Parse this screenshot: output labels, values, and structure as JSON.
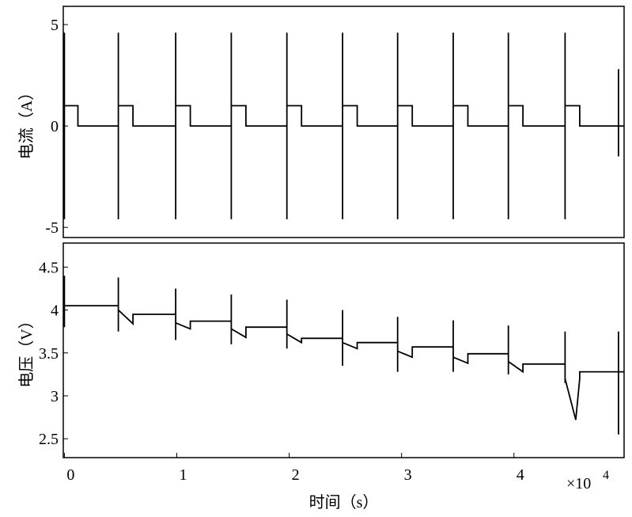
{
  "chart_data": [
    {
      "type": "line",
      "ylabel": "电流（A）",
      "x": [
        0,
        0,
        0,
        0,
        1200,
        1200,
        4800,
        4800,
        4800,
        4800,
        6100,
        6100,
        9900,
        9900,
        9900,
        9900,
        11200,
        11200,
        14850,
        14850,
        14850,
        14850,
        16150,
        16150,
        19800,
        19800,
        19800,
        19800,
        21100,
        21100,
        24750,
        24750,
        24750,
        24750,
        26050,
        26050,
        29650,
        29650,
        29650,
        29650,
        30950,
        30950,
        34600,
        34600,
        34600,
        34600,
        35900,
        35900,
        39500,
        39500,
        39500,
        39500,
        40800,
        40800,
        44550,
        44550,
        44550,
        44550,
        45850,
        45850,
        49300,
        49300,
        49300,
        49300,
        49800
      ],
      "series": [
        {
          "color": "#000000",
          "values": [
            0,
            -4.6,
            4.6,
            1,
            1,
            0,
            0,
            -4.6,
            4.6,
            1,
            1,
            0,
            0,
            -4.6,
            4.6,
            1,
            1,
            0,
            0,
            -4.6,
            4.6,
            1,
            1,
            0,
            0,
            -4.6,
            4.6,
            1,
            1,
            0,
            0,
            -4.6,
            4.6,
            1,
            1,
            0,
            0,
            -4.6,
            4.6,
            1,
            1,
            0,
            0,
            -4.6,
            4.6,
            1,
            1,
            0,
            0,
            -4.6,
            4.6,
            1,
            1,
            0,
            0,
            -4.6,
            4.6,
            1,
            1,
            0,
            0,
            -1.5,
            2.8,
            0,
            0
          ]
        }
      ],
      "xlim": [
        -100,
        49800
      ],
      "ylim": [
        -5.5,
        5.9
      ],
      "yticks": [
        -5,
        0,
        5
      ]
    },
    {
      "type": "line",
      "ylabel": "电压（V）",
      "xlabel": "时间（s）",
      "x_multiplier": "×10",
      "x_exponent": "4",
      "x": [
        0,
        0,
        0,
        4800,
        4800,
        4800,
        4800,
        6100,
        6100,
        9900,
        9900,
        9900,
        9900,
        11200,
        11200,
        14850,
        14850,
        14850,
        14850,
        16150,
        16150,
        19800,
        19800,
        19800,
        19800,
        21100,
        21100,
        24750,
        24750,
        24750,
        24750,
        26050,
        26050,
        29650,
        29650,
        29650,
        29650,
        30950,
        30950,
        34600,
        34600,
        34600,
        34600,
        35900,
        35900,
        39500,
        39500,
        39500,
        39500,
        40800,
        40800,
        44550,
        44550,
        44550,
        44550,
        45500,
        45850,
        45850,
        49300,
        49300,
        49300,
        49300,
        49800
      ],
      "series": [
        {
          "color": "#000000",
          "values": [
            3.8,
            4.4,
            4.05,
            4.05,
            4.38,
            3.75,
            4.0,
            3.84,
            3.95,
            3.95,
            4.25,
            3.65,
            3.85,
            3.78,
            3.87,
            3.87,
            4.18,
            3.6,
            3.78,
            3.68,
            3.8,
            3.8,
            4.12,
            3.55,
            3.72,
            3.62,
            3.67,
            3.67,
            4.0,
            3.35,
            3.62,
            3.55,
            3.62,
            3.62,
            3.92,
            3.28,
            3.52,
            3.45,
            3.57,
            3.57,
            3.88,
            3.28,
            3.45,
            3.38,
            3.49,
            3.49,
            3.82,
            3.25,
            3.4,
            3.28,
            3.37,
            3.37,
            3.75,
            3.15,
            3.2,
            2.72,
            3.2,
            3.28,
            3.28,
            3.75,
            2.55,
            3.28,
            3.28
          ]
        }
      ],
      "xlim": [
        -100,
        49800
      ],
      "ylim": [
        2.28,
        4.78
      ],
      "xticks": [
        0,
        {
          "value": 10000,
          "label": "1"
        },
        {
          "value": 20000,
          "label": "2"
        },
        {
          "value": 30000,
          "label": "3"
        },
        {
          "value": 40000,
          "label": "4"
        }
      ],
      "yticks": [
        2.5,
        3,
        3.5,
        4,
        4.5
      ]
    }
  ]
}
